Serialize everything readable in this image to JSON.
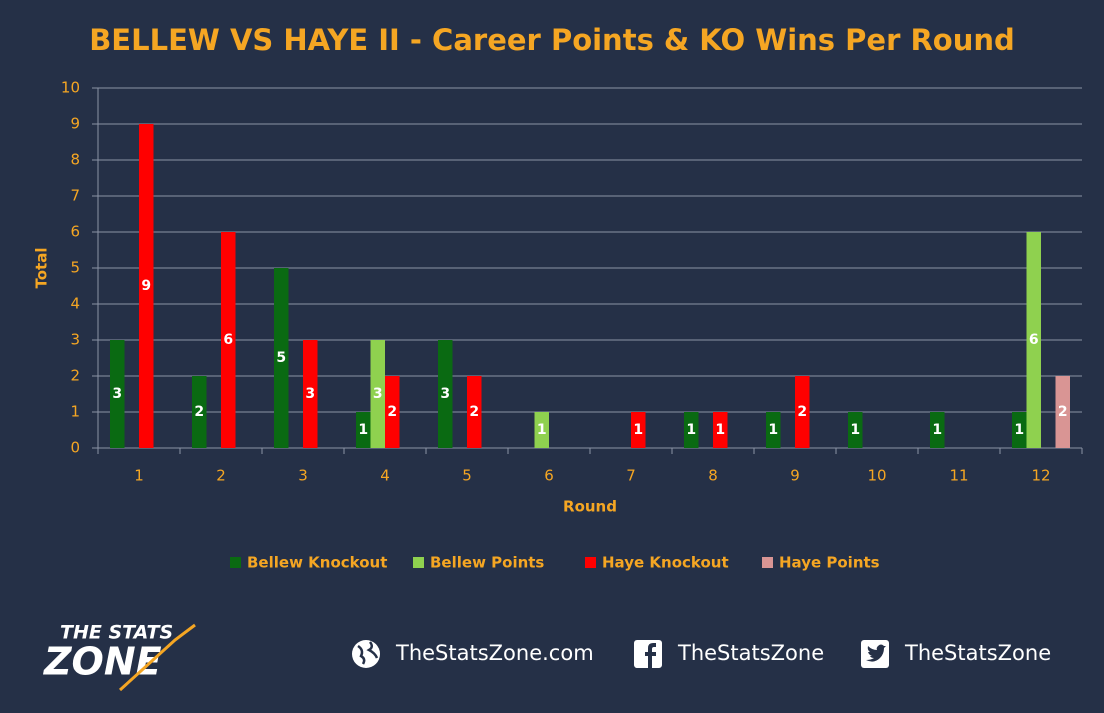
{
  "chart_data": {
    "type": "bar",
    "title": "BELLEW VS HAYE II - Career Points & KO Wins Per Round",
    "x_label": "Round",
    "y_label": "Total",
    "categories": [
      "1",
      "2",
      "3",
      "4",
      "5",
      "6",
      "7",
      "8",
      "9",
      "10",
      "11",
      "12"
    ],
    "series": [
      {
        "name": "Bellew Knockout",
        "color": "#0a6a12",
        "values": [
          3,
          2,
          5,
          1,
          3,
          0,
          0,
          1,
          1,
          1,
          1,
          1
        ]
      },
      {
        "name": "Bellew Points",
        "color": "#8fd14f",
        "values": [
          0,
          0,
          0,
          3,
          0,
          1,
          0,
          0,
          0,
          0,
          0,
          6
        ]
      },
      {
        "name": "Haye Knockout",
        "color": "#ff0000",
        "values": [
          9,
          6,
          3,
          2,
          2,
          0,
          1,
          1,
          2,
          0,
          0,
          0
        ]
      },
      {
        "name": "Haye Points",
        "color": "#d99594",
        "values": [
          0,
          0,
          0,
          0,
          0,
          0,
          0,
          0,
          0,
          0,
          0,
          2
        ]
      }
    ],
    "ylim": [
      0,
      10
    ],
    "yticks": [
      0,
      1,
      2,
      3,
      4,
      5,
      6,
      7,
      8,
      9,
      10
    ],
    "grid": true,
    "legend": "bottom"
  },
  "footer": {
    "logo_top": "THE STATS",
    "logo_bottom": "ZONE",
    "website": "TheStatsZone.com",
    "facebook": "TheStatsZone",
    "twitter": "TheStatsZone"
  }
}
